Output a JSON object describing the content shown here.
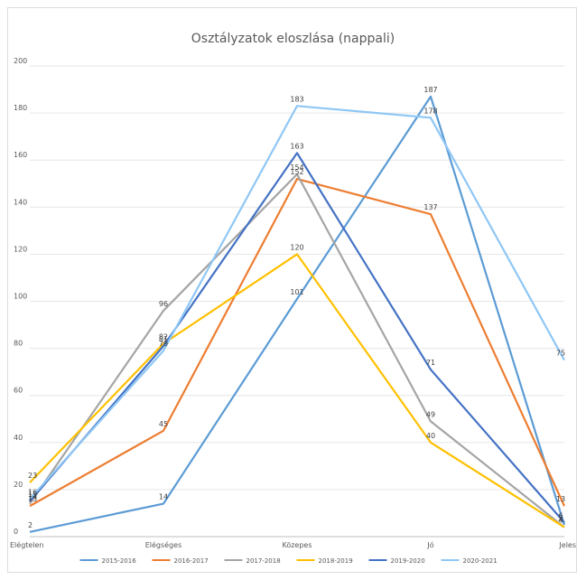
{
  "chart_data": {
    "type": "line",
    "title": "Osztályzatok eloszlása (nappali)",
    "xlabel": "",
    "ylabel": "",
    "categories": [
      "Elégtelen",
      "Elégséges",
      "Közepes",
      "Jó",
      "Jeles"
    ],
    "ylim": [
      0,
      200
    ],
    "yticks": [
      0,
      20,
      40,
      60,
      80,
      100,
      120,
      140,
      160,
      180,
      200
    ],
    "grid": true,
    "legend_position": "bottom",
    "series": [
      {
        "name": "2015-2016",
        "color": "#5B9BD5",
        "values": [
          2,
          14,
          101,
          187,
          5
        ]
      },
      {
        "name": "2016-2017",
        "color": "#ED7D31",
        "values": [
          13,
          45,
          152,
          137,
          13
        ]
      },
      {
        "name": "2017-2018",
        "color": "#A5A5A5",
        "values": [
          14,
          96,
          154,
          49,
          4
        ]
      },
      {
        "name": "2018-2019",
        "color": "#FFC000",
        "values": [
          23,
          82,
          120,
          40,
          4
        ]
      },
      {
        "name": "2019-2020",
        "color": "#4472C4",
        "values": [
          15,
          81,
          163,
          71,
          6
        ]
      },
      {
        "name": "2020-2021",
        "color": "#8FC7F5",
        "values": [
          16,
          79,
          183,
          178,
          75
        ]
      }
    ]
  }
}
